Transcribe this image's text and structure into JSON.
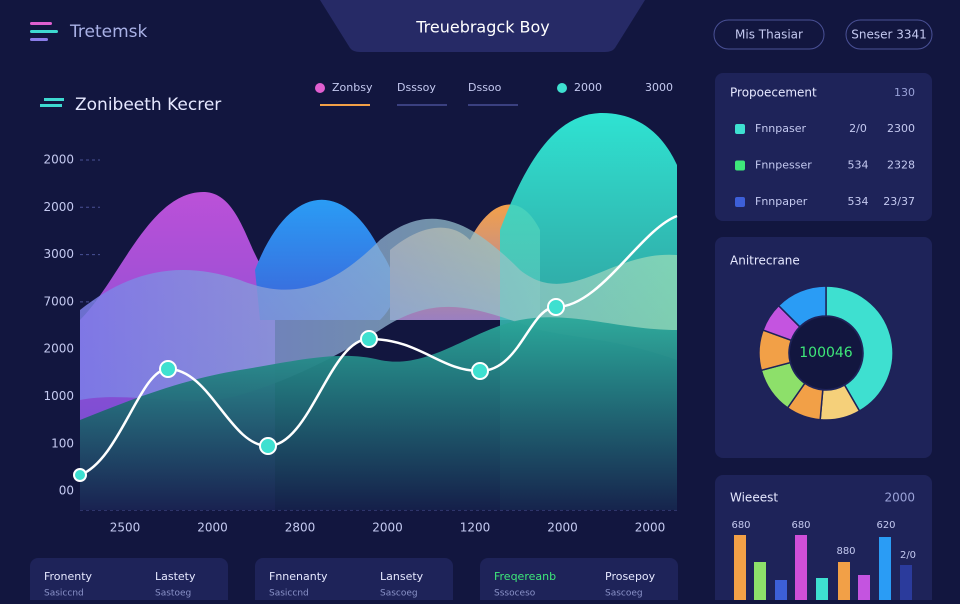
{
  "header": {
    "brand": "Tretemsk",
    "title": "Treuebragck Boy",
    "buttons": [
      "Mis Thasiar",
      "Sneser 3341"
    ]
  },
  "main_panel": {
    "title": "Zonibeeth Kecrer",
    "legend": [
      "Zonbsy",
      "Dsssoy",
      "Dssoo",
      "2000",
      "3000"
    ],
    "y_labels": [
      "2000",
      "2000",
      "3000",
      "7000",
      "2000",
      "1000",
      "100",
      "00"
    ],
    "x_labels": [
      "2500",
      "2000",
      "2800",
      "2000",
      "1200",
      "2000",
      "2000"
    ]
  },
  "proposal_panel": {
    "title": "Propoecement",
    "badge": "130",
    "rows": [
      [
        "Fnnpaser",
        "2/0",
        "2300"
      ],
      [
        "Fnnpesser",
        "534",
        "2328"
      ],
      [
        "Fnnpaper",
        "534",
        "23/37"
      ]
    ]
  },
  "donut_panel": {
    "title": "Anitrecrane",
    "center": "100046"
  },
  "bars_panel": {
    "title": "Wieeest",
    "total": "2000",
    "labels": [
      "680",
      "680",
      "880",
      "620",
      "2/0"
    ]
  },
  "cards": [
    {
      "left": "Fronenty",
      "right": "Lastety",
      "left_sub": "Sasiccnd",
      "right_sub": "Sastoeg"
    },
    {
      "left": "Fnnenanty",
      "right": "Lansety",
      "left_sub": "Sasiccnd",
      "right_sub": "Sascoeg"
    },
    {
      "left": "Freqereanb",
      "right": "Prosepoy",
      "left_sub": "Sssoceso",
      "right_sub": "Sascoeg"
    }
  ]
}
